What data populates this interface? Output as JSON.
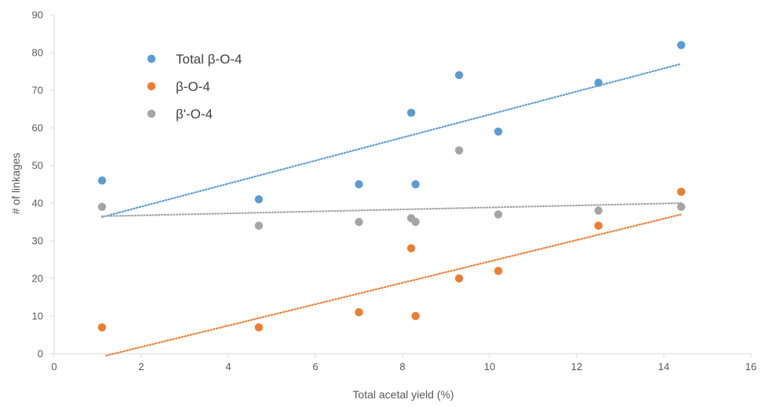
{
  "chart_data": {
    "type": "scatter",
    "title": "",
    "xlabel": "Total acetal yield (%)",
    "ylabel": "# of linkages",
    "xlim": [
      0,
      16
    ],
    "ylim": [
      0,
      90
    ],
    "x_ticks": [
      0,
      2,
      4,
      6,
      8,
      10,
      12,
      14,
      16
    ],
    "y_ticks": [
      0,
      10,
      20,
      30,
      40,
      50,
      60,
      70,
      80,
      90
    ],
    "grid": false,
    "legend_position": "top-left",
    "series": [
      {
        "name": "Total β-O-4",
        "color": "#5B9BD5",
        "x": [
          1.1,
          4.7,
          7.0,
          8.2,
          8.3,
          9.3,
          10.2,
          12.5,
          14.4
        ],
        "y": [
          46,
          41,
          45,
          64,
          45,
          74,
          59,
          72,
          82
        ],
        "trendline": {
          "x": [
            1.1,
            14.4
          ],
          "y": [
            36.3,
            77
          ]
        }
      },
      {
        "name": "β-O-4",
        "color": "#ED7D31",
        "x": [
          1.1,
          4.7,
          7.0,
          8.2,
          8.3,
          9.3,
          10.2,
          12.5,
          14.4
        ],
        "y": [
          7,
          7,
          11,
          28,
          10,
          20,
          22,
          34,
          43
        ],
        "trendline": {
          "x": [
            1.2,
            14.4
          ],
          "y": [
            -0.5,
            37
          ]
        }
      },
      {
        "name": "β'-O-4",
        "color": "#A5A5A5",
        "x": [
          1.1,
          4.7,
          7.0,
          8.2,
          8.3,
          9.3,
          10.2,
          12.5,
          14.4
        ],
        "y": [
          39,
          34,
          35,
          36,
          35,
          54,
          37,
          38,
          39
        ],
        "trendline": {
          "x": [
            1.1,
            14.4
          ],
          "y": [
            36.5,
            40
          ]
        }
      }
    ]
  }
}
